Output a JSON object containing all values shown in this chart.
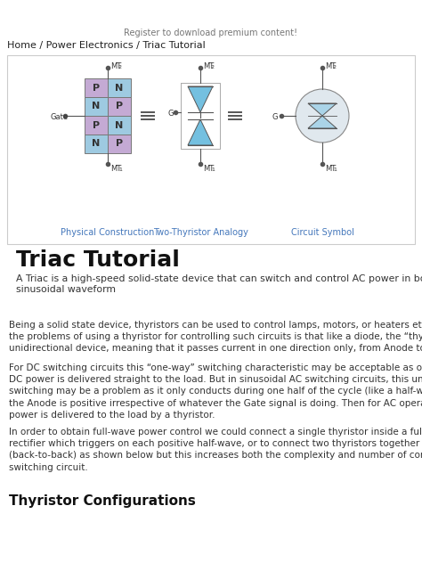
{
  "bg_color": "#ffffff",
  "header_text": "Register to download premium content!",
  "breadcrumb": "Home / Power Electronics / Triac Tutorial",
  "title": "Triac Tutorial",
  "subtitle": "A Triac is a high-speed solid-state device that can switch and control AC power in both directions of a\nsinusoidal waveform",
  "caption1": "Physical Construction",
  "caption2": "Two-Thyristor Analogy",
  "caption3": "Circuit Symbol",
  "para1": "Being a solid state device, thyristors can be used to control lamps, motors, or heaters etc. However, one of\nthe problems of using a thyristor for controlling such circuits is that like a diode, the “thyristor” is a\nunidirectional device, meaning that it passes current in one direction only, from Anode to Cathode.",
  "para2": "For DC switching circuits this “one-way” switching characteristic may be acceptable as once triggered all the\nDC power is delivered straight to the load. But in sinusoidal AC switching circuits, this unidirectional\nswitching may be a problem as it only conducts during one half of the cycle (like a half-wave rectifier) when\nthe Anode is positive irrespective of whatever the Gate signal is doing. Then for AC operation only half the\npower is delivered to the load by a thyristor.",
  "para3": "In order to obtain full-wave power control we could connect a single thyristor inside a full-wave bridge\nrectifier which triggers on each positive half-wave, or to connect two thyristors together in inverse parallel\n(back-to-back) as shown below but this increases both the complexity and number of components used in the\nswitching circuit.",
  "section": "Thyristor Configurations",
  "link_color": "#4477bb",
  "text_color": "#333333"
}
